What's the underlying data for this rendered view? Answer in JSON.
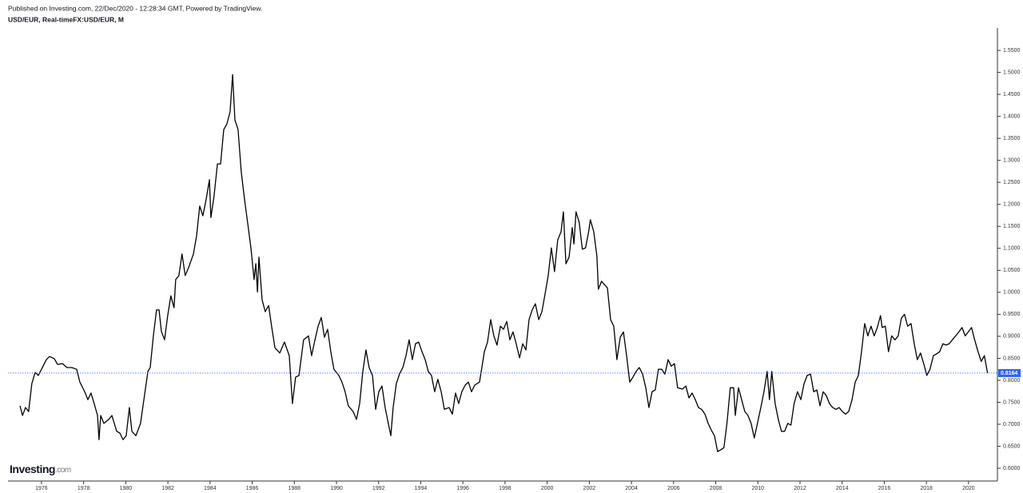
{
  "chart_data": {
    "type": "line",
    "published": "Published on Investing.com, 22/Dec/2020 - 12:28:34 GMT, Powered by TradingView.",
    "title": "USD/EUR, Real-timeFX:USD/EUR, M",
    "brand": "Investing",
    "brand_suffix": ".com",
    "color": "#000000",
    "x": [
      1974.98,
      1975.1,
      1975.24,
      1975.39,
      1975.54,
      1975.7,
      1975.85,
      1976,
      1976.23,
      1976.38,
      1976.61,
      1976.76,
      1976.99,
      1977.21,
      1977.44,
      1977.67,
      1977.82,
      1978.05,
      1978.2,
      1978.35,
      1978.5,
      1978.66,
      1978.73,
      1978.81,
      1978.96,
      1979.19,
      1979.34,
      1979.57,
      1979.72,
      1979.87,
      1980.02,
      1980.17,
      1980.29,
      1980.48,
      1980.7,
      1980.86,
      1981.05,
      1981.16,
      1981.31,
      1981.46,
      1981.58,
      1981.69,
      1981.84,
      1981.99,
      1982.14,
      1982.29,
      1982.37,
      1982.52,
      1982.67,
      1982.82,
      1982.98,
      1983.21,
      1983.36,
      1983.51,
      1983.66,
      1983.81,
      1983.97,
      1984.04,
      1984.19,
      1984.35,
      1984.5,
      1984.65,
      1984.8,
      1984.95,
      1985.07,
      1985.18,
      1985.33,
      1985.48,
      1985.64,
      1985.79,
      1985.94,
      1986.09,
      1986.17,
      1986.25,
      1986.32,
      1986.47,
      1986.62,
      1986.78,
      1986.93,
      1987.08,
      1987.31,
      1987.53,
      1987.76,
      1987.91,
      1988.06,
      1988.22,
      1988.44,
      1988.67,
      1988.82,
      1988.98,
      1989.13,
      1989.28,
      1989.43,
      1989.58,
      1989.73,
      1989.88,
      1990.11,
      1990.26,
      1990.41,
      1990.56,
      1990.79,
      1990.95,
      1991.1,
      1991.25,
      1991.4,
      1991.55,
      1991.71,
      1991.86,
      1992.01,
      1992.16,
      1992.31,
      1992.46,
      1992.58,
      1992.69,
      1992.84,
      1992.99,
      1993.15,
      1993.3,
      1993.45,
      1993.6,
      1993.75,
      1993.9,
      1994.06,
      1994.21,
      1994.36,
      1994.51,
      1994.66,
      1994.81,
      1994.97,
      1995.12,
      1995.35,
      1995.5,
      1995.65,
      1995.8,
      1995.95,
      1996.11,
      1996.26,
      1996.41,
      1996.56,
      1996.79,
      1997.02,
      1997.17,
      1997.32,
      1997.47,
      1997.62,
      1997.78,
      1997.93,
      1998.08,
      1998.23,
      1998.38,
      1998.53,
      1998.69,
      1998.84,
      1998.99,
      1999.14,
      1999.29,
      1999.44,
      1999.6,
      1999.75,
      1999.9,
      2000.05,
      2000.2,
      2000.35,
      2000.5,
      2000.66,
      2000.77,
      2000.89,
      2001.04,
      2001.19,
      2001.27,
      2001.37,
      2001.52,
      2001.67,
      2001.82,
      2001.97,
      2002.05,
      2002.21,
      2002.36,
      2002.43,
      2002.58,
      2002.71,
      2002.86,
      2003.01,
      2003.16,
      2003.31,
      2003.47,
      2003.62,
      2003.77,
      2003.92,
      2004.07,
      2004.22,
      2004.37,
      2004.53,
      2004.68,
      2004.83,
      2004.98,
      2005.13,
      2005.28,
      2005.44,
      2005.59,
      2005.74,
      2005.89,
      2006.04,
      2006.19,
      2006.42,
      2006.58,
      2006.73,
      2006.88,
      2007.03,
      2007.18,
      2007.33,
      2007.49,
      2007.64,
      2007.79,
      2007.94,
      2008.09,
      2008.24,
      2008.39,
      2008.54,
      2008.69,
      2008.85,
      2008.93,
      2009.08,
      2009.23,
      2009.38,
      2009.53,
      2009.68,
      2009.83,
      2009.98,
      2010.14,
      2010.29,
      2010.44,
      2010.55,
      2010.66,
      2010.82,
      2010.97,
      2011.12,
      2011.27,
      2011.42,
      2011.57,
      2011.72,
      2011.88,
      2012.04,
      2012.19,
      2012.34,
      2012.5,
      2012.65,
      2012.8,
      2012.95,
      2013.1,
      2013.25,
      2013.4,
      2013.55,
      2013.71,
      2013.86,
      2014.01,
      2014.16,
      2014.31,
      2014.47,
      2014.62,
      2014.77,
      2014.92,
      2015.07,
      2015.22,
      2015.37,
      2015.52,
      2015.67,
      2015.82,
      2015.9,
      2016.05,
      2016.2,
      2016.35,
      2016.51,
      2016.66,
      2016.81,
      2016.96,
      2017.11,
      2017.27,
      2017.42,
      2017.57,
      2017.72,
      2017.87,
      2018.02,
      2018.17,
      2018.33,
      2018.48,
      2018.63,
      2018.78,
      2018.93,
      2019.08,
      2019.23,
      2019.39,
      2019.54,
      2019.69,
      2019.84,
      2019.99,
      2020.14,
      2020.29,
      2020.45,
      2020.6,
      2020.75,
      2020.9
    ],
    "values": [
      0.742,
      0.72,
      0.738,
      0.729,
      0.792,
      0.818,
      0.811,
      0.825,
      0.847,
      0.854,
      0.849,
      0.836,
      0.838,
      0.829,
      0.829,
      0.825,
      0.796,
      0.774,
      0.756,
      0.771,
      0.747,
      0.72,
      0.665,
      0.72,
      0.702,
      0.711,
      0.72,
      0.684,
      0.68,
      0.665,
      0.674,
      0.738,
      0.684,
      0.674,
      0.702,
      0.756,
      0.82,
      0.829,
      0.901,
      0.96,
      0.96,
      0.911,
      0.892,
      0.947,
      0.992,
      0.965,
      1.029,
      1.038,
      1.087,
      1.038,
      1.056,
      1.087,
      1.128,
      1.196,
      1.174,
      1.21,
      1.256,
      1.17,
      1.219,
      1.292,
      1.292,
      1.37,
      1.383,
      1.41,
      1.495,
      1.392,
      1.37,
      1.274,
      1.21,
      1.156,
      1.101,
      1.029,
      1.065,
      1.001,
      1.08,
      0.983,
      0.956,
      0.97,
      0.92,
      0.874,
      0.862,
      0.887,
      0.856,
      0.747,
      0.807,
      0.811,
      0.892,
      0.901,
      0.856,
      0.892,
      0.923,
      0.943,
      0.898,
      0.916,
      0.865,
      0.825,
      0.811,
      0.796,
      0.774,
      0.742,
      0.729,
      0.711,
      0.747,
      0.82,
      0.869,
      0.829,
      0.811,
      0.734,
      0.774,
      0.787,
      0.738,
      0.702,
      0.674,
      0.738,
      0.792,
      0.814,
      0.829,
      0.856,
      0.892,
      0.847,
      0.883,
      0.887,
      0.865,
      0.847,
      0.82,
      0.811,
      0.774,
      0.802,
      0.774,
      0.734,
      0.738,
      0.723,
      0.771,
      0.747,
      0.774,
      0.789,
      0.796,
      0.774,
      0.789,
      0.796,
      0.865,
      0.887,
      0.938,
      0.901,
      0.88,
      0.923,
      0.916,
      0.934,
      0.892,
      0.91,
      0.883,
      0.851,
      0.883,
      0.869,
      0.938,
      0.96,
      0.974,
      0.938,
      0.956,
      0.996,
      1.038,
      1.101,
      1.047,
      1.119,
      1.138,
      1.183,
      1.065,
      1.08,
      1.147,
      1.11,
      1.183,
      1.159,
      1.098,
      1.101,
      1.138,
      1.165,
      1.138,
      1.083,
      1.007,
      1.025,
      1.018,
      1.01,
      0.938,
      0.923,
      0.847,
      0.898,
      0.91,
      0.856,
      0.796,
      0.807,
      0.82,
      0.829,
      0.814,
      0.783,
      0.738,
      0.774,
      0.778,
      0.825,
      0.825,
      0.814,
      0.847,
      0.832,
      0.838,
      0.783,
      0.78,
      0.787,
      0.76,
      0.771,
      0.756,
      0.738,
      0.734,
      0.723,
      0.702,
      0.687,
      0.674,
      0.638,
      0.642,
      0.647,
      0.705,
      0.783,
      0.783,
      0.72,
      0.783,
      0.756,
      0.729,
      0.72,
      0.702,
      0.669,
      0.702,
      0.738,
      0.774,
      0.82,
      0.756,
      0.82,
      0.747,
      0.711,
      0.684,
      0.684,
      0.702,
      0.698,
      0.747,
      0.774,
      0.756,
      0.792,
      0.811,
      0.814,
      0.774,
      0.778,
      0.742,
      0.774,
      0.765,
      0.747,
      0.738,
      0.734,
      0.738,
      0.729,
      0.723,
      0.729,
      0.756,
      0.796,
      0.811,
      0.865,
      0.929,
      0.901,
      0.923,
      0.901,
      0.92,
      0.947,
      0.92,
      0.923,
      0.865,
      0.901,
      0.892,
      0.901,
      0.941,
      0.95,
      0.923,
      0.929,
      0.883,
      0.847,
      0.862,
      0.838,
      0.811,
      0.825,
      0.856,
      0.86,
      0.865,
      0.883,
      0.88,
      0.883,
      0.892,
      0.901,
      0.91,
      0.92,
      0.901,
      0.91,
      0.92,
      0.892,
      0.865,
      0.843,
      0.856,
      0.8164
    ],
    "last_price": 0.8164,
    "xlim": [
      1974.41,
      2021.37
    ],
    "ylim": [
      0.571,
      1.601
    ],
    "xticks": [
      1976,
      1978,
      1980,
      1982,
      1984,
      1986,
      1988,
      1990,
      1992,
      1994,
      1996,
      1998,
      2000,
      2002,
      2004,
      2006,
      2008,
      2010,
      2012,
      2014,
      2016,
      2018,
      2020
    ],
    "yticks": [
      {
        "value": 0.6,
        "label": "0.6000"
      },
      {
        "value": 0.65,
        "label": "0.6500"
      },
      {
        "value": 0.7,
        "label": "0.7000"
      },
      {
        "value": 0.75,
        "label": "0.7500"
      },
      {
        "value": 0.8,
        "label": "0.8000"
      },
      {
        "value": 0.85,
        "label": "0.8500"
      },
      {
        "value": 0.9,
        "label": "0.9000"
      },
      {
        "value": 0.95,
        "label": "0.9500"
      },
      {
        "value": 1.0,
        "label": "1.0000"
      },
      {
        "value": 1.05,
        "label": "1.0500"
      },
      {
        "value": 1.1,
        "label": "1.1000"
      },
      {
        "value": 1.15,
        "label": "1.1500"
      },
      {
        "value": 1.2,
        "label": "1.2000"
      },
      {
        "value": 1.25,
        "label": "1.2500"
      },
      {
        "value": 1.3,
        "label": "1.3000"
      },
      {
        "value": 1.35,
        "label": "1.3500"
      },
      {
        "value": 1.4,
        "label": "1.4000"
      },
      {
        "value": 1.45,
        "label": "1.4500"
      },
      {
        "value": 1.5,
        "label": "1.5000"
      },
      {
        "value": 1.55,
        "label": "1.5500"
      }
    ],
    "grid": false
  }
}
